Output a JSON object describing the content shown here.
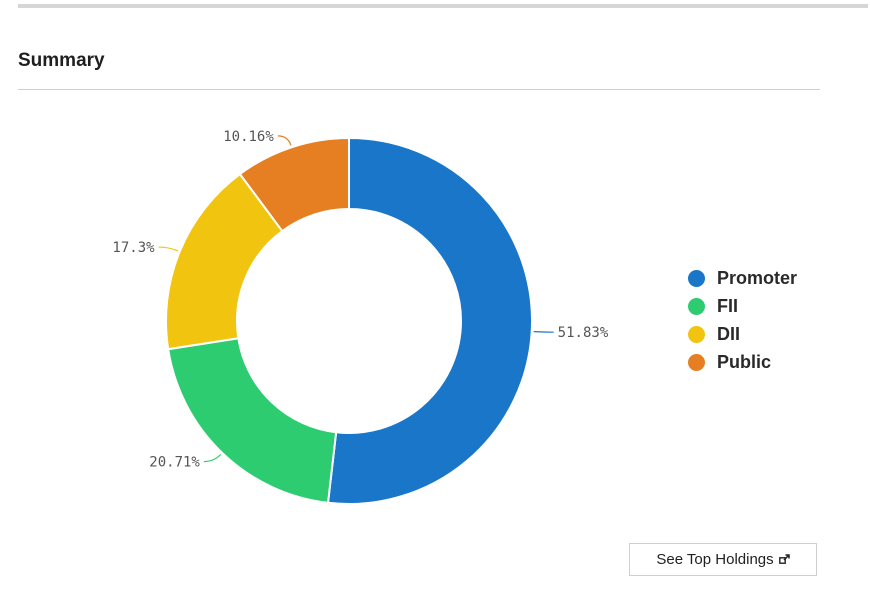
{
  "summary": {
    "title": "Summary",
    "button_label": "See Top Holdings",
    "button_icon": "external-link-icon"
  },
  "chart_data": {
    "type": "pie",
    "donut": true,
    "title": "",
    "slices": [
      {
        "label": "Promoter",
        "value": 51.83,
        "value_label": "51.83%",
        "color": "#1976c8"
      },
      {
        "label": "FII",
        "value": 20.71,
        "value_label": "20.71%",
        "color": "#2ecc71"
      },
      {
        "label": "DII",
        "value": 17.3,
        "value_label": "17.3%",
        "color": "#f1c40f"
      },
      {
        "label": "Public",
        "value": 10.16,
        "value_label": "10.16%",
        "color": "#e67e22"
      }
    ],
    "legend_position": "right"
  }
}
